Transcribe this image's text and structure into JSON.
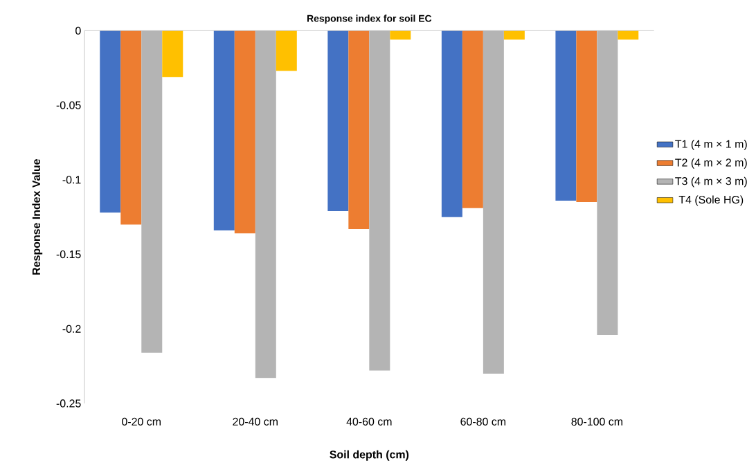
{
  "chart_data": {
    "type": "bar",
    "title": "Response index for soil EC",
    "xlabel": "Soil depth (cm)",
    "ylabel": "Response Index Value",
    "categories": [
      "0-20 cm",
      "20-40 cm",
      "40-60 cm",
      "60-80 cm",
      "80-100 cm"
    ],
    "series": [
      {
        "name": "T1 (4 m × 1 m)",
        "color": "#4472c4",
        "values": [
          -0.122,
          -0.134,
          -0.121,
          -0.125,
          -0.114
        ]
      },
      {
        "name": "T2 (4 m × 2 m)",
        "color": "#ed7d31",
        "values": [
          -0.13,
          -0.136,
          -0.133,
          -0.119,
          -0.115
        ]
      },
      {
        "name": "T3 (4 m × 3 m)",
        "color": "#b4b4b4",
        "values": [
          -0.216,
          -0.233,
          -0.228,
          -0.23,
          -0.204
        ]
      },
      {
        "name": "T4 (Sole HG)",
        "color": "#ffc000",
        "values": [
          -0.031,
          -0.027,
          -0.006,
          -0.006,
          -0.006
        ]
      }
    ],
    "ylim": [
      -0.25,
      0
    ],
    "yticks": [
      -0.25,
      -0.2,
      -0.15,
      -0.1,
      -0.05,
      0
    ],
    "grid": false,
    "legend": "right"
  }
}
